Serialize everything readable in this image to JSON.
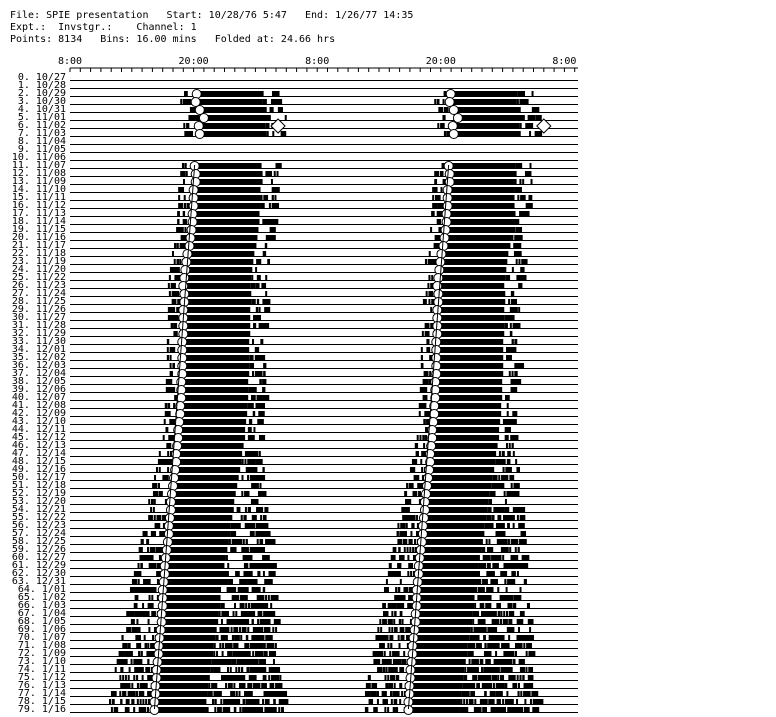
{
  "header": {
    "line1": "File: SPIE presentation   Start: 10/28/76 5:47   End: 1/26/77 14:35",
    "line2": "Expt.:  Invstgr.:    Channel: 1",
    "line3": "Points: 8134   Bins: 16.00 mins   Folded at: 24.66 hrs"
  },
  "chart_data": {
    "type": "actogram",
    "x_tick_labels": [
      "8:00",
      "20:00",
      "8:00",
      "20:00",
      "8:00"
    ],
    "x_range_hours": [
      8,
      57.32
    ],
    "period_hours": 24.66,
    "bin_minutes": 16,
    "row_labels": [
      "0. 10/27",
      "1. 10/28",
      "2. 10/29",
      "3. 10/30",
      "4. 10/31",
      "5. 11/01",
      "6. 11/02",
      "7. 11/03",
      "8. 11/04",
      "9. 11/05",
      "10. 11/06",
      "11. 11/07",
      "12. 11/08",
      "13. 11/09",
      "14. 11/10",
      "15. 11/11",
      "16. 11/12",
      "17. 11/13",
      "18. 11/14",
      "19. 11/15",
      "20. 11/16",
      "21. 11/17",
      "22. 11/18",
      "23. 11/19",
      "24. 11/20",
      "25. 11/22",
      "26. 11/23",
      "27. 11/24",
      "28. 11/25",
      "29. 11/26",
      "30. 11/27",
      "31. 11/28",
      "32. 11/29",
      "33. 11/30",
      "34. 12/01",
      "35. 12/02",
      "36. 12/03",
      "37. 12/04",
      "38. 12/05",
      "39. 12/06",
      "40. 12/07",
      "41. 12/08",
      "42. 12/09",
      "43. 12/10",
      "44. 12/11",
      "45. 12/12",
      "46. 12/13",
      "47. 12/14",
      "48. 12/15",
      "49. 12/16",
      "50. 12/17",
      "51. 12/18",
      "52. 12/19",
      "53. 12/20",
      "54. 12/21",
      "55. 12/22",
      "56. 12/23",
      "57. 12/24",
      "58. 12/25",
      "59. 12/26",
      "60. 12/27",
      "61. 12/29",
      "62. 12/30",
      "63. 12/31",
      "64. 1/01",
      "65. 1/02",
      "66. 1/03",
      "67. 1/04",
      "68. 1/05",
      "69. 1/06",
      "70. 1/07",
      "71. 1/08",
      "72. 1/09",
      "73. 1/10",
      "74. 1/11",
      "75. 1/12",
      "76. 1/13",
      "77. 1/14",
      "78. 1/15",
      "79. 1/16"
    ],
    "activity_onset_hours_first_cycle": [
      null,
      null,
      20.3,
      20.2,
      20.6,
      21.0,
      20.5,
      20.6,
      null,
      null,
      null,
      20.1,
      20.2,
      20.2,
      20.0,
      20.0,
      20.0,
      19.9,
      19.9,
      19.8,
      19.7,
      19.6,
      19.4,
      19.3,
      19.2,
      19.1,
      19.0,
      19.1,
      19.1,
      19.0,
      19.0,
      19.0,
      19.0,
      18.9,
      18.9,
      18.9,
      18.9,
      18.9,
      18.8,
      18.8,
      18.8,
      18.7,
      18.7,
      18.6,
      18.5,
      18.5,
      18.4,
      18.3,
      18.3,
      18.2,
      18.1,
      18.0,
      17.9,
      17.8,
      17.8,
      17.7,
      17.6,
      17.6,
      17.5,
      17.4,
      17.3,
      17.2,
      17.2,
      17.1,
      17.0,
      17.0,
      17.0,
      16.9,
      16.9,
      16.8,
      16.7,
      16.6,
      16.6,
      16.5,
      16.4,
      16.4,
      16.3,
      16.3,
      16.2,
      16.2
    ],
    "markers": {
      "circle": "activity onset",
      "diamond": "event marker"
    },
    "grid": false
  }
}
